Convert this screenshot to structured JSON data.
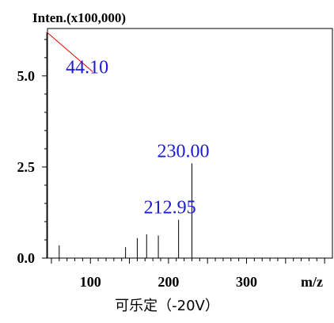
{
  "chart_data": {
    "type": "bar",
    "title": "可乐定（-20V）",
    "ylabel": "Inten.(x100,000)",
    "xlabel": "m/z",
    "xlim": [
      45,
      410
    ],
    "ylim": [
      0,
      6.3
    ],
    "x_ticks": [
      "100",
      "200",
      "300"
    ],
    "y_ticks": [
      "0.0",
      "2.5",
      "5.0"
    ],
    "peaks": [
      {
        "x": 44.1,
        "y": 6.2
      },
      {
        "x": 60.0,
        "y": 0.35
      },
      {
        "x": 145.0,
        "y": 0.3
      },
      {
        "x": 160.0,
        "y": 0.55
      },
      {
        "x": 172.0,
        "y": 0.65
      },
      {
        "x": 187.0,
        "y": 0.62
      },
      {
        "x": 212.95,
        "y": 1.05
      },
      {
        "x": 230.0,
        "y": 2.6
      }
    ],
    "peak_labels": [
      {
        "text": "44.10",
        "x": 44.1
      },
      {
        "text": "212.95",
        "x": 212.95
      },
      {
        "text": "230.00",
        "x": 230.0
      }
    ],
    "colors": {
      "peak": "#000000",
      "label": "#1a1ad6",
      "leader": "#e00000",
      "axis": "#000000"
    }
  }
}
